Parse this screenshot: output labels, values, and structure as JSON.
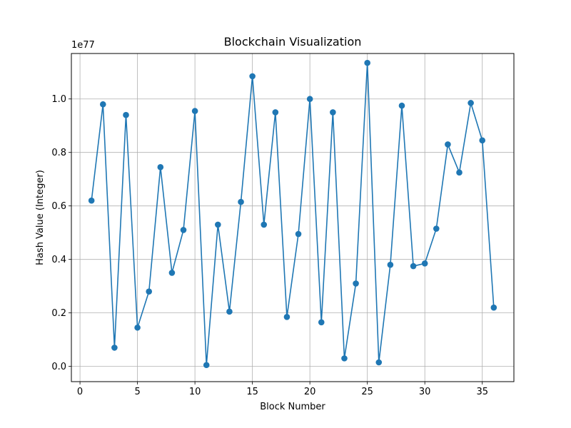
{
  "chart_data": {
    "type": "line",
    "title": "Blockchain Visualization",
    "xlabel": "Block Number",
    "ylabel": "Hash Value (Integer)",
    "y_offset_label": "1e77",
    "y_scale_factor": 1e+77,
    "grid": true,
    "marker": "circle",
    "color": "#1f77b4",
    "xlim": [
      -0.75,
      37.75
    ],
    "ylim": [
      -0.057,
      1.17
    ],
    "xticks": [
      0,
      5,
      10,
      15,
      20,
      25,
      30,
      35
    ],
    "xtick_labels": [
      "0",
      "5",
      "10",
      "15",
      "20",
      "25",
      "30",
      "35"
    ],
    "yticks": [
      0.0,
      0.2,
      0.4,
      0.6,
      0.8,
      1.0
    ],
    "ytick_labels": [
      "0.0",
      "0.2",
      "0.4",
      "0.6",
      "0.8",
      "1.0"
    ],
    "series": [
      {
        "x": [
          1,
          2,
          3,
          4,
          5,
          6,
          7,
          8,
          9,
          10,
          11,
          12,
          13,
          14,
          15,
          16,
          17,
          18,
          19,
          20,
          21,
          22,
          23,
          24,
          25,
          26,
          27,
          28,
          29,
          30,
          31,
          32,
          33,
          34,
          35,
          36
        ],
        "values": [
          0.62,
          0.98,
          0.07,
          0.94,
          0.145,
          0.28,
          0.745,
          0.35,
          0.51,
          0.955,
          0.005,
          0.53,
          0.205,
          0.615,
          1.085,
          0.53,
          0.95,
          0.185,
          0.495,
          1.0,
          0.165,
          0.95,
          0.03,
          0.31,
          1.135,
          0.015,
          0.38,
          0.975,
          0.375,
          0.385,
          0.515,
          0.83,
          0.725,
          0.985,
          0.845,
          0.22
        ]
      }
    ]
  }
}
